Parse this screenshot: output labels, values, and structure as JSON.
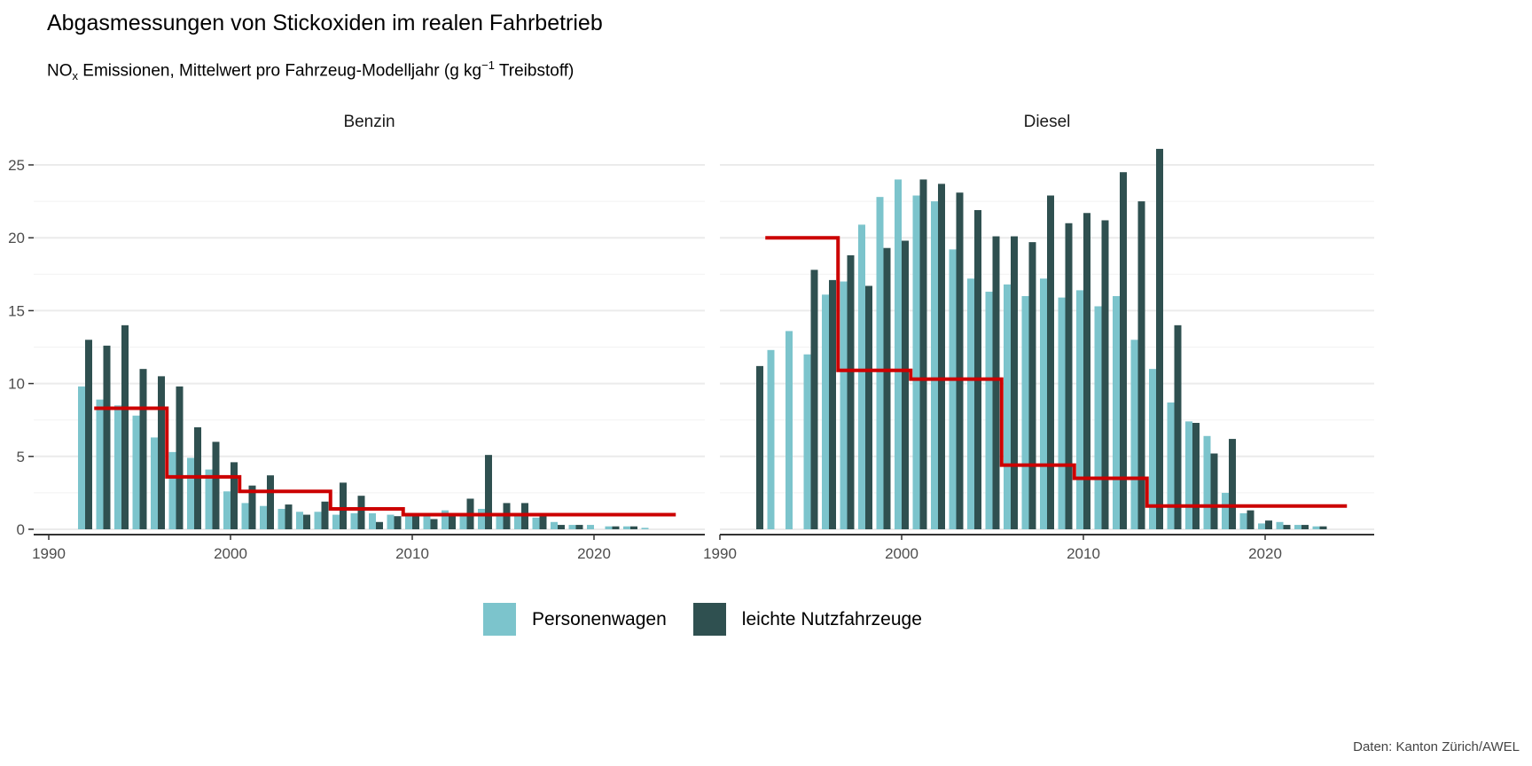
{
  "title": "Abgasmessungen von Stickoxiden im realen Fahrbetrieb",
  "subtitle": {
    "pre": "NO",
    "sub": "x",
    "mid": " Emissionen, Mittelwert pro Fahrzeug-Modelljahr (g kg",
    "sup": "−1",
    "post": " Treibstoff)"
  },
  "caption": "Daten: Kanton Zürich/AWEL",
  "colors": {
    "Personenwagen": "#7cc4cc",
    "leichte Nutzfahrzeuge": "#2f5050",
    "limit": "#cc0000",
    "error": "#999999"
  },
  "chart_data": {
    "type": "bar",
    "xlim": [
      1990,
      2025
    ],
    "ylim": [
      0,
      26.5
    ],
    "x_ticks": [
      1990,
      2000,
      2010,
      2020
    ],
    "y_ticks": [
      0,
      5,
      10,
      15,
      20,
      25
    ],
    "grid": true,
    "legend": "bottom",
    "legend_entries": [
      "Personenwagen",
      "leichte Nutzfahrzeuge"
    ],
    "years": [
      1992,
      1993,
      1994,
      1995,
      1996,
      1997,
      1998,
      1999,
      2000,
      2001,
      2002,
      2003,
      2004,
      2005,
      2006,
      2007,
      2008,
      2009,
      2010,
      2011,
      2012,
      2013,
      2014,
      2015,
      2016,
      2017,
      2018,
      2019,
      2020,
      2021,
      2022,
      2023
    ],
    "panels": [
      {
        "name": "Benzin",
        "series": [
          {
            "name": "Personenwagen",
            "values": [
              9.8,
              8.9,
              8.5,
              7.8,
              6.3,
              5.3,
              4.9,
              4.1,
              2.6,
              1.8,
              1.6,
              1.4,
              1.2,
              1.2,
              1.0,
              1.1,
              1.1,
              1.0,
              0.9,
              0.9,
              1.3,
              1.1,
              1.4,
              1.0,
              0.9,
              0.8,
              0.5,
              0.3,
              0.3,
              0.2,
              0.2,
              0.1
            ]
          },
          {
            "name": "leichte Nutzfahrzeuge",
            "values": [
              13.0,
              12.6,
              14.0,
              11.0,
              10.5,
              9.8,
              7.0,
              6.0,
              4.6,
              3.0,
              3.7,
              1.7,
              1.0,
              1.9,
              3.2,
              2.3,
              0.5,
              0.9,
              1.1,
              0.7,
              0.9,
              2.1,
              5.1,
              1.8,
              1.8,
              1.0,
              0.3,
              0.3,
              null,
              0.2,
              0.2,
              null
            ]
          }
        ],
        "limit_steps": [
          {
            "from": 1992.5,
            "to": 1996.5,
            "value": 8.3
          },
          {
            "from": 1996.5,
            "to": 2000.5,
            "value": 3.6
          },
          {
            "from": 2000.5,
            "to": 2005.5,
            "value": 2.6
          },
          {
            "from": 2005.5,
            "to": 2009.5,
            "value": 1.4
          },
          {
            "from": 2009.5,
            "to": 2024.5,
            "value": 1.0
          }
        ]
      },
      {
        "name": "Diesel",
        "series": [
          {
            "name": "Personenwagen",
            "values": [
              null,
              12.3,
              13.6,
              12.0,
              16.1,
              17.0,
              20.9,
              22.8,
              24.0,
              22.9,
              22.5,
              19.2,
              17.2,
              16.3,
              16.8,
              16.0,
              17.2,
              15.9,
              16.4,
              15.3,
              16.0,
              13.0,
              11.0,
              8.7,
              7.4,
              6.4,
              2.5,
              1.1,
              0.4,
              0.5,
              0.3,
              0.2
            ]
          },
          {
            "name": "leichte Nutzfahrzeuge",
            "values": [
              11.2,
              null,
              null,
              17.8,
              17.1,
              18.8,
              16.7,
              19.3,
              19.8,
              24.0,
              23.7,
              23.1,
              21.9,
              20.1,
              20.1,
              19.7,
              22.9,
              21.0,
              21.7,
              21.2,
              24.5,
              22.5,
              26.1,
              14.0,
              7.3,
              5.2,
              6.2,
              1.3,
              0.6,
              0.3,
              0.3,
              0.2
            ]
          }
        ],
        "limit_steps": [
          {
            "from": 1992.5,
            "to": 1996.5,
            "value": 20.0
          },
          {
            "from": 1996.5,
            "to": 2000.5,
            "value": 10.9
          },
          {
            "from": 2000.5,
            "to": 2005.5,
            "value": 10.3
          },
          {
            "from": 2005.5,
            "to": 2009.5,
            "value": 4.4
          },
          {
            "from": 2009.5,
            "to": 2013.5,
            "value": 3.5
          },
          {
            "from": 2013.5,
            "to": 2024.5,
            "value": 1.6
          }
        ]
      }
    ]
  }
}
